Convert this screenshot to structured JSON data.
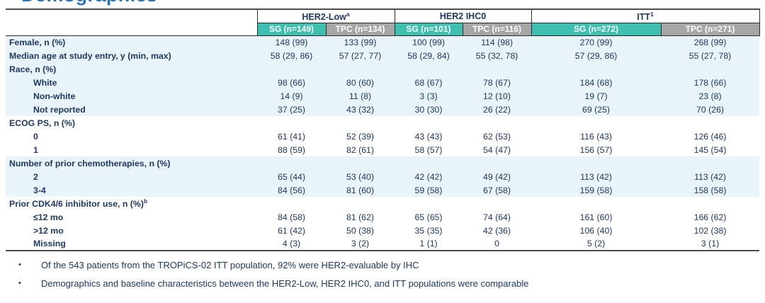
{
  "title_fragment": "Demographics",
  "colors": {
    "accent_teal": "#3fbfb0",
    "header_gray": "#a6a6a6",
    "text_navy": "#1f3864",
    "band_blue": "#e8f3fa",
    "title_blue": "#2e75b6"
  },
  "table": {
    "groups": [
      {
        "label": "HER2-Low",
        "sup": "a"
      },
      {
        "label": "HER2 IHC0",
        "sup": ""
      },
      {
        "label": "ITT",
        "sup": "1"
      }
    ],
    "subheaders": [
      {
        "label": "SG (n=149)",
        "arm": "sg"
      },
      {
        "label": "TPC (n=134)",
        "arm": "tpc"
      },
      {
        "label": "SG (n=101)",
        "arm": "sg"
      },
      {
        "label": "TPC (n=116)",
        "arm": "tpc"
      },
      {
        "label": "SG (n=272)",
        "arm": "sg"
      },
      {
        "label": "TPC (n=271)",
        "arm": "tpc"
      }
    ],
    "rows": [
      {
        "label": "Female, n (%)",
        "sup": "",
        "indent": false,
        "shaded": true,
        "values": [
          "148 (99)",
          "133 (99)",
          "100 (99)",
          "114 (98)",
          "270 (99)",
          "268 (99)"
        ]
      },
      {
        "label": "Median age at study entry, y (min, max)",
        "sup": "",
        "indent": false,
        "shaded": true,
        "values": [
          "58 (29, 86)",
          "57 (27, 77)",
          "58 (29, 84)",
          "55 (32, 78)",
          "57 (29, 86)",
          "55 (27, 78)"
        ]
      },
      {
        "label": "Race, n (%)",
        "sup": "",
        "indent": false,
        "shaded": true,
        "values": [
          "",
          "",
          "",
          "",
          "",
          ""
        ]
      },
      {
        "label": "White",
        "sup": "",
        "indent": true,
        "shaded": true,
        "values": [
          "98 (66)",
          "80 (60)",
          "68 (67)",
          "78 (67)",
          "184 (68)",
          "178 (66)"
        ]
      },
      {
        "label": "Non-white",
        "sup": "",
        "indent": true,
        "shaded": true,
        "values": [
          "14 (9)",
          "11 (8)",
          "3 (3)",
          "12 (10)",
          "19 (7)",
          "23 (8)"
        ]
      },
      {
        "label": "Not reported",
        "sup": "",
        "indent": true,
        "shaded": true,
        "values": [
          "37 (25)",
          "43 (32)",
          "30 (30)",
          "26 (22)",
          "69 (25)",
          "70 (26)"
        ]
      },
      {
        "label": "ECOG PS, n (%)",
        "sup": "",
        "indent": false,
        "shaded": false,
        "values": [
          "",
          "",
          "",
          "",
          "",
          ""
        ]
      },
      {
        "label": "0",
        "sup": "",
        "indent": true,
        "shaded": false,
        "values": [
          "61 (41)",
          "52 (39)",
          "43 (43)",
          "62 (53)",
          "116 (43)",
          "126 (46)"
        ]
      },
      {
        "label": "1",
        "sup": "",
        "indent": true,
        "shaded": false,
        "values": [
          "88 (59)",
          "82 (61)",
          "58 (57)",
          "54 (47)",
          "156 (57)",
          "145 (54)"
        ]
      },
      {
        "label": "Number of prior chemotherapies, n (%)",
        "sup": "",
        "indent": false,
        "shaded": true,
        "values": [
          "",
          "",
          "",
          "",
          "",
          ""
        ]
      },
      {
        "label": "2",
        "sup": "",
        "indent": true,
        "shaded": true,
        "values": [
          "65 (44)",
          "53 (40)",
          "42 (42)",
          "49 (42)",
          "113 (42)",
          "113 (42)"
        ]
      },
      {
        "label": "3-4",
        "sup": "",
        "indent": true,
        "shaded": true,
        "values": [
          "84 (56)",
          "81 (60)",
          "59 (58)",
          "67 (58)",
          "159 (58)",
          "158 (58)"
        ]
      },
      {
        "label": "Prior CDK4/6 inhibitor use, n (%)",
        "sup": "b",
        "indent": false,
        "shaded": false,
        "values": [
          "",
          "",
          "",
          "",
          "",
          ""
        ]
      },
      {
        "label": "≤12 mo",
        "sup": "",
        "indent": true,
        "shaded": false,
        "values": [
          "84 (58)",
          "81 (62)",
          "65 (65)",
          "74 (64)",
          "161 (60)",
          "166 (62)"
        ]
      },
      {
        "label": ">12 mo",
        "sup": "",
        "indent": true,
        "shaded": false,
        "values": [
          "61 (42)",
          "50 (38)",
          "35 (35)",
          "42 (36)",
          "106 (40)",
          "102 (38)"
        ]
      },
      {
        "label": "Missing",
        "sup": "",
        "indent": true,
        "shaded": false,
        "values": [
          "4 (3)",
          "3 (2)",
          "1 (1)",
          "0",
          "5 (2)",
          "3 (1)"
        ]
      }
    ]
  },
  "bullets": [
    {
      "text": "Of the 543 patients from the TROPiCS-02 ITT population, 92% were HER2-evaluable by IHC"
    },
    {
      "text": "Demographics and baseline characteristics between the HER2-Low, HER2 IHC0, and ITT populations were comparable"
    }
  ]
}
